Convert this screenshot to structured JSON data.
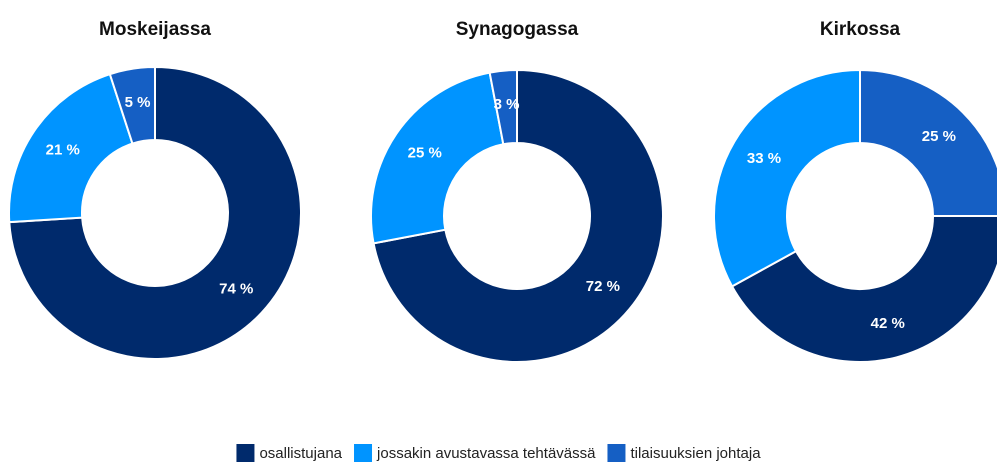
{
  "chart_data": [
    {
      "type": "pie",
      "title": "Moskeijassa",
      "categories": [
        "osallistujana",
        "jossakin avustavassa tehtävässä",
        "tilaisuuksien johtaja"
      ],
      "values": [
        74,
        21,
        5
      ],
      "value_labels": [
        "74 %",
        "21 %",
        "5 %"
      ],
      "colors": [
        "#002a6c",
        "#0094ff",
        "#155fc4"
      ]
    },
    {
      "type": "pie",
      "title": "Synagogassa",
      "categories": [
        "osallistujana",
        "jossakin avustavassa tehtävässä",
        "tilaisuuksien johtaja"
      ],
      "values": [
        72,
        25,
        3
      ],
      "value_labels": [
        "72 %",
        "25 %",
        "3 %"
      ],
      "colors": [
        "#002a6c",
        "#0094ff",
        "#155fc4"
      ]
    },
    {
      "type": "pie",
      "title": "Kirkossa",
      "categories": [
        "tilaisuuksien johtaja",
        "osallistujana",
        "jossakin avustavassa tehtävässä"
      ],
      "values": [
        25,
        42,
        33
      ],
      "value_labels": [
        "25 %",
        "42 %",
        "33 %"
      ],
      "colors": [
        "#155fc4",
        "#002a6c",
        "#0094ff"
      ]
    }
  ],
  "legend": [
    {
      "name": "osallistujana",
      "color": "#002a6c"
    },
    {
      "name": "jossakin avustavassa tehtävässä",
      "color": "#0094ff"
    },
    {
      "name": "tilaisuuksien johtaja",
      "color": "#155fc4"
    }
  ]
}
